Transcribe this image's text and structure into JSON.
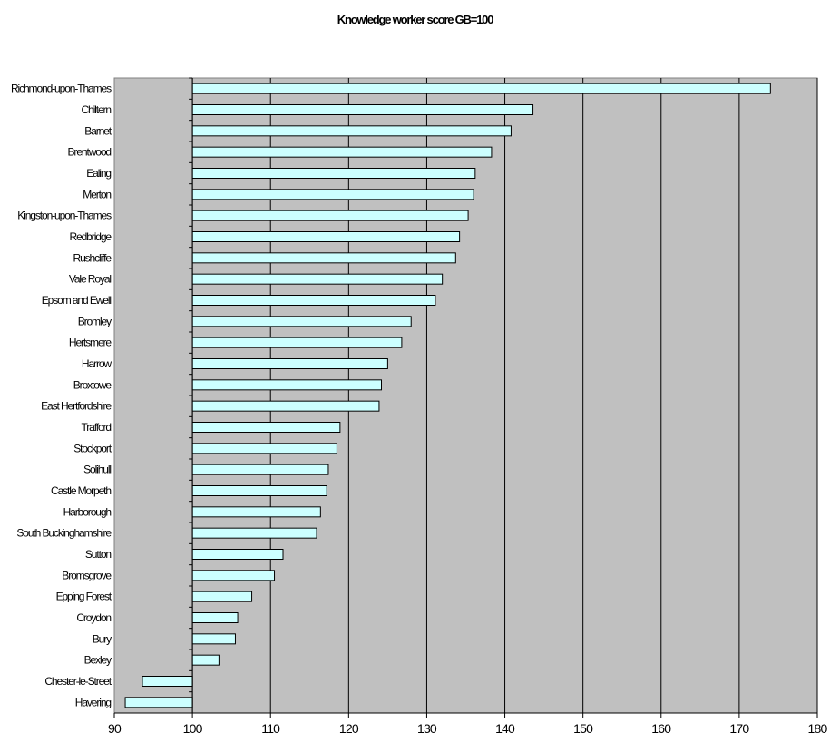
{
  "chart_data": {
    "type": "bar",
    "orientation": "horizontal",
    "title": "Knowledge worker score GB=100",
    "xlabel": "",
    "ylabel": "",
    "xlim": [
      90,
      180
    ],
    "baseline": 100,
    "xticks": [
      90,
      100,
      110,
      120,
      130,
      140,
      150,
      160,
      170,
      180
    ],
    "grid": "vertical",
    "legend": "none",
    "colors": {
      "plot_bg": "#c0c0c0",
      "bar_fill": "#ccffff",
      "bar_stroke": "#000000",
      "grid": "#000000"
    },
    "categories": [
      "Richmond-upon-Thames",
      "Chiltern",
      "Barnet",
      "Brentwood",
      "Ealing",
      "Merton",
      "Kingston-upon-Thames",
      "Redbridge",
      "Rushcliffe",
      "Vale Royal",
      "Epsom and Ewell",
      "Bromley",
      "Hertsmere",
      "Harrow",
      "Broxtowe",
      "East Hertfordshire",
      "Trafford",
      "Stockport",
      "Solihull",
      "Castle Morpeth",
      "Harborough",
      "South Buckinghamshire",
      "Sutton",
      "Bromsgrove",
      "Epping Forest",
      "Croydon",
      "Bury",
      "Bexley",
      "Chester-le-Street",
      "Havering"
    ],
    "values": [
      174,
      143.6,
      140.8,
      138.3,
      136.2,
      136,
      135.3,
      134.2,
      133.7,
      132,
      131.1,
      128,
      126.8,
      125,
      124.2,
      123.9,
      118.9,
      118.5,
      117.4,
      117.2,
      116.4,
      115.9,
      111.6,
      110.5,
      107.6,
      105.8,
      105.5,
      103.4,
      93.6,
      91.4
    ]
  }
}
